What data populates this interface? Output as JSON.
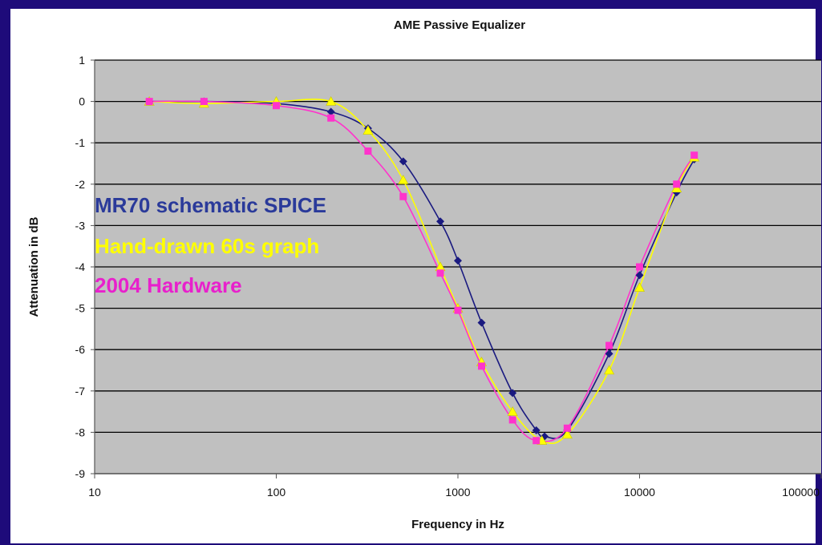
{
  "chart_data": {
    "type": "line",
    "title": "AME Passive Equalizer",
    "xlabel": "Frequency in Hz",
    "ylabel": "Attenuation in dB",
    "x_scale": "log",
    "xlim": [
      10,
      100000
    ],
    "ylim": [
      -9,
      1
    ],
    "x_ticks": [
      10,
      100,
      1000,
      10000,
      100000
    ],
    "x_tick_labels": [
      "10",
      "100",
      "1000",
      "10000",
      "100000"
    ],
    "y_ticks": [
      1,
      0,
      -1,
      -2,
      -3,
      -4,
      -5,
      -6,
      -7,
      -8,
      -9
    ],
    "y_tick_labels": [
      "1",
      "0",
      "-1",
      "-2",
      "-3",
      "-4",
      "-5",
      "-6",
      "-7",
      "-8",
      "-9"
    ],
    "grid": "horizontal",
    "plot_background": "#c0c0c0",
    "legend_placement": "left",
    "series": [
      {
        "name": "MR70 schematic SPICE",
        "color": "#1a1a80",
        "label_color": "#2a3a9a",
        "marker": "diamond",
        "x": [
          20,
          40,
          100,
          200,
          320,
          500,
          800,
          1000,
          1350,
          2000,
          2700,
          3000,
          4000,
          6800,
          10000,
          16000,
          20000
        ],
        "values": [
          0,
          0,
          -0.05,
          -0.25,
          -0.65,
          -1.45,
          -2.9,
          -3.85,
          -5.35,
          -7.05,
          -7.95,
          -8.1,
          -7.95,
          -6.1,
          -4.2,
          -2.2,
          -1.4
        ]
      },
      {
        "name": "Hand-drawn 60s graph",
        "color": "#ffff00",
        "label_color": "#ffff00",
        "marker": "triangle",
        "x": [
          20,
          40,
          100,
          200,
          320,
          500,
          800,
          1000,
          1350,
          2000,
          2900,
          4000,
          6800,
          10000,
          16000,
          20000
        ],
        "values": [
          0,
          -0.05,
          0,
          0,
          -0.7,
          -1.9,
          -4.0,
          -5.0,
          -6.3,
          -7.5,
          -8.2,
          -8.05,
          -6.5,
          -4.5,
          -2.1,
          -1.35
        ]
      },
      {
        "name": "2004 Hardware",
        "color": "#ff33cc",
        "label_color": "#e820cc",
        "marker": "square",
        "x": [
          20,
          40,
          100,
          200,
          320,
          500,
          800,
          1000,
          1350,
          2000,
          2700,
          4000,
          6800,
          10000,
          16000,
          20000
        ],
        "values": [
          0,
          0,
          -0.1,
          -0.4,
          -1.2,
          -2.3,
          -4.15,
          -5.05,
          -6.4,
          -7.7,
          -8.2,
          -7.9,
          -5.9,
          -4.0,
          -2.0,
          -1.3
        ]
      }
    ]
  }
}
